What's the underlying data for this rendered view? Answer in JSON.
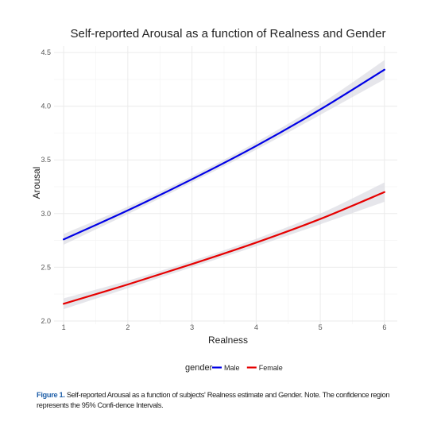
{
  "chart_data": {
    "type": "line",
    "title": "Self-reported Arousal as a function of Realness and Gender",
    "xlabel": "Realness",
    "ylabel": "Arousal",
    "xlim": [
      0.85,
      6.2
    ],
    "ylim": [
      1.97,
      4.56
    ],
    "xticks": [
      "1",
      "2",
      "3",
      "4",
      "5",
      "6"
    ],
    "yticks": [
      "2.0",
      "2.5",
      "3.0",
      "3.5",
      "4.0",
      "4.5"
    ],
    "x": [
      1,
      2,
      3,
      4,
      5,
      6
    ],
    "series": [
      {
        "name": "Male",
        "color": "#0000e6",
        "values": [
          2.76,
          3.03,
          3.32,
          3.63,
          3.97,
          4.34
        ],
        "ci_halfwidth": [
          0.05,
          0.035,
          0.03,
          0.035,
          0.05,
          0.09
        ]
      },
      {
        "name": "Female",
        "color": "#e60000",
        "values": [
          2.16,
          2.34,
          2.53,
          2.73,
          2.95,
          3.2
        ],
        "ci_halfwidth": [
          0.05,
          0.035,
          0.03,
          0.035,
          0.05,
          0.09
        ]
      }
    ],
    "grid": true,
    "legend_title": "gender",
    "legend_position": "bottom",
    "ci_color": "#d6d6de"
  },
  "caption": {
    "label": "Figure 1.",
    "text": " Self-reported Arousal as a function of subjects' Realness estimate and Gender. Note. The confidence region represents the 95% Confi-dence Intervals."
  }
}
